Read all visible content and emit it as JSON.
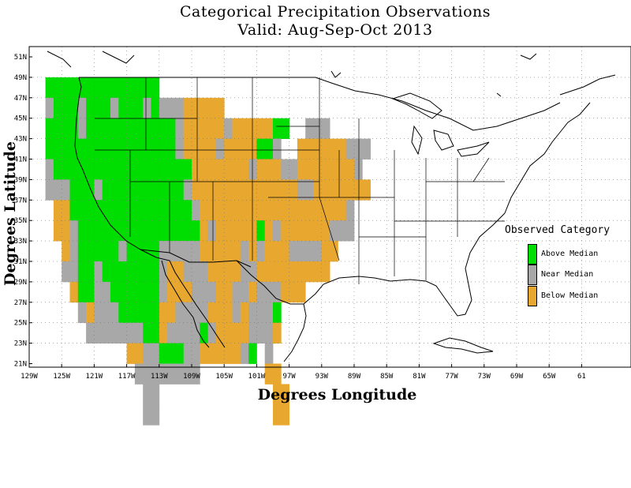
{
  "title": "Categorical Precipitation Observations",
  "subtitle": "Valid: Aug-Sep-Oct 2013",
  "x_axis_title": "Degrees Longitude",
  "y_axis_title": "Degrees Latitude",
  "lat_ticks": [
    "51N",
    "49N",
    "47N",
    "45N",
    "43N",
    "41N",
    "39N",
    "37N",
    "35N",
    "33N",
    "31N",
    "29N",
    "27N",
    "25N",
    "23N",
    "21N"
  ],
  "lon_ticks": [
    "129W",
    "125W",
    "121W",
    "117W",
    "113W",
    "109W",
    "105W",
    "101W",
    "97W",
    "93W",
    "89W",
    "85W",
    "81W",
    "77W",
    "73W",
    "69W",
    "65W",
    "61"
  ],
  "legend": {
    "title": "Observed Category",
    "items": [
      {
        "label": "Above Median",
        "color": "#00dd00"
      },
      {
        "label": "Near Median",
        "color": "#a8a8a8"
      },
      {
        "label": "Below Median",
        "color": "#e8a830"
      }
    ]
  },
  "grid_extent": {
    "lon_min": -125,
    "lat_max": 49,
    "cell_degrees": 2
  },
  "grid_rows": [
    "AAAAAAAAAAAAAA",
    "GAAAGAAAGAAAGAGGGBBBBB.................",
    "AAAAGAAAAAAAAAAAGBBBBBGBBBBBAA..GGG.....",
    "AAAAAAAAAAAAAAAAGBBBBGBBBBAAG..BBBBBBGGG",
    "GAAAAAAAAAAAAAAAAABBBBBBBGBBBGGBBBBBBBG",
    "GGGAAAGAAAAAAAAAAGBBBBBBBBBBBBBGGBBBBBBB",
    ".BBAAAAAAAAAAAAAAAGBBBBBBBBBBBBBBBBBBG",
    ".BBGAAAAAAAAAAAAAAABGBBBBBABGBBBBBBGGG",
    "..BGAAAAAGAAAAGGGGGBBBBBGBGBBBGGGGBB",
    "..GGAAGAAAAAAAGBBGGGBBBBGGBBBBBBBBB",
    "...BAAGGAAAAAAGBBBGGGBBGGBGGGBBB",
    "....GBGGGAAAAABBGGGGBBBGBGGGA",
    ".....GGGGGGGAABGGGGAGBBBBGGGB",
    "..........BBGGAAAGGBBBBBGA.G",
    "...........GGGGGGGG........BB",
    "............GG..............BB",
    "............GG..............BB"
  ]
}
